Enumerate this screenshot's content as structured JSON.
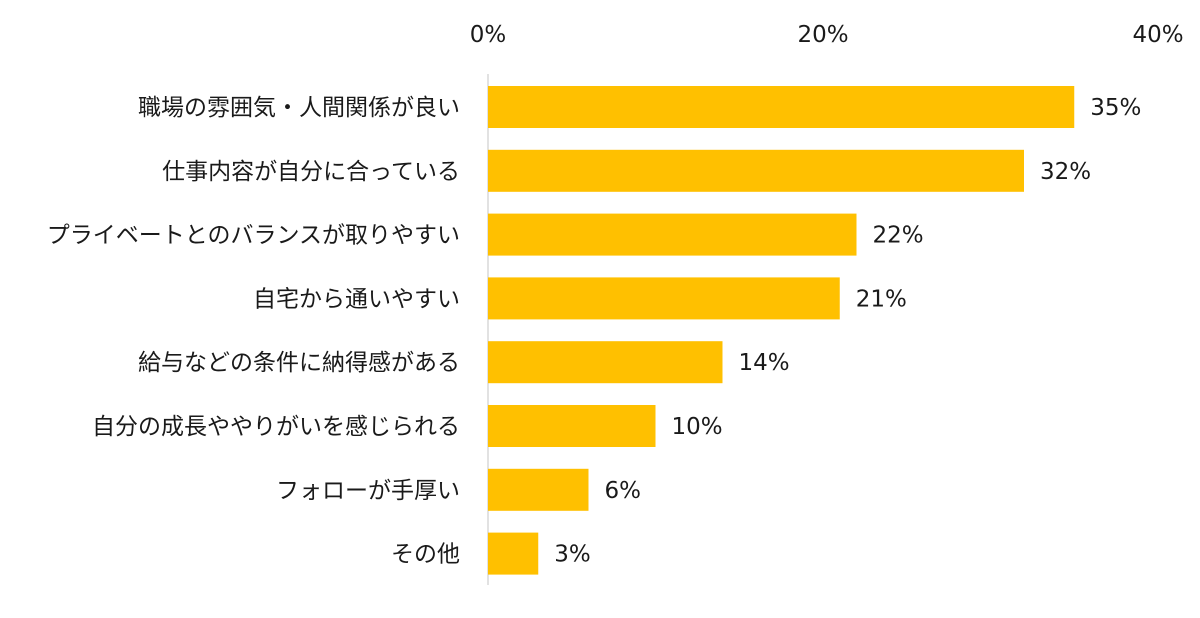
{
  "chart_data": {
    "type": "bar",
    "orientation": "horizontal",
    "title": "",
    "xlabel": "",
    "ylabel": "",
    "xlim": [
      0,
      40
    ],
    "x_ticks": [
      {
        "value": 0,
        "label": "0%"
      },
      {
        "value": 20,
        "label": "20%"
      },
      {
        "value": 40,
        "label": "40%"
      }
    ],
    "x_axis_position": "top",
    "grid": false,
    "legend": "none",
    "bar_color": "#FFC000",
    "axis_color": "#D9D9D9",
    "categories": [
      "職場の雰囲気・人間関係が良い",
      "仕事内容が自分に合っている",
      "プライベートとのバランスが取りやすい",
      "自宅から通いやすい",
      "給与などの条件に納得感がある",
      "自分の成長ややりがいを感じられる",
      "フォローが手厚い",
      "その他"
    ],
    "values": [
      35,
      32,
      22,
      21,
      14,
      10,
      6,
      3
    ],
    "value_labels": [
      "35%",
      "32%",
      "22%",
      "21%",
      "14%",
      "10%",
      "6%",
      "3%"
    ]
  }
}
